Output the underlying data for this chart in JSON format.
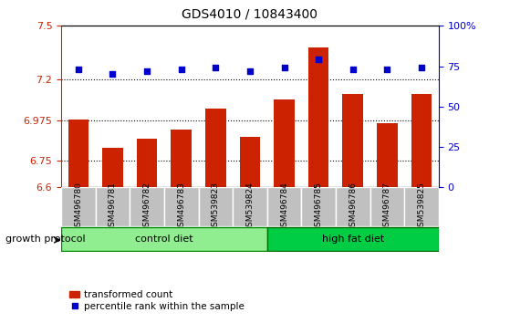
{
  "title": "GDS4010 / 10843400",
  "samples": [
    "GSM496780",
    "GSM496781",
    "GSM496782",
    "GSM496783",
    "GSM539823",
    "GSM539824",
    "GSM496784",
    "GSM496785",
    "GSM496786",
    "GSM496787",
    "GSM539825"
  ],
  "bar_values": [
    6.98,
    6.82,
    6.87,
    6.92,
    7.04,
    6.88,
    7.09,
    7.38,
    7.12,
    6.96,
    7.12
  ],
  "dot_values": [
    73,
    70,
    72,
    73,
    74,
    72,
    74,
    79,
    73,
    73,
    74
  ],
  "bar_color": "#cc2200",
  "dot_color": "#0000cc",
  "ylim": [
    6.6,
    7.5
  ],
  "y2lim": [
    0,
    100
  ],
  "yticks": [
    6.6,
    6.75,
    6.975,
    7.2,
    7.5
  ],
  "ytick_labels": [
    "6.6",
    "6.75",
    "6.975",
    "7.2",
    "7.5"
  ],
  "y2ticks": [
    0,
    25,
    50,
    75,
    100
  ],
  "y2tick_labels": [
    "0",
    "25",
    "50",
    "75",
    "100%"
  ],
  "hlines": [
    6.75,
    6.975,
    7.2
  ],
  "control_diet_label": "control diet",
  "high_fat_label": "high fat diet",
  "protocol_label": "growth protocol",
  "legend_bar_label": "transformed count",
  "legend_dot_label": "percentile rank within the sample",
  "control_indices": [
    0,
    1,
    2,
    3,
    4,
    5
  ],
  "high_fat_indices": [
    6,
    7,
    8,
    9,
    10
  ],
  "control_color": "#90ee90",
  "high_fat_color": "#00cc44",
  "tick_area_color": "#c0c0c0",
  "bar_width": 0.6
}
